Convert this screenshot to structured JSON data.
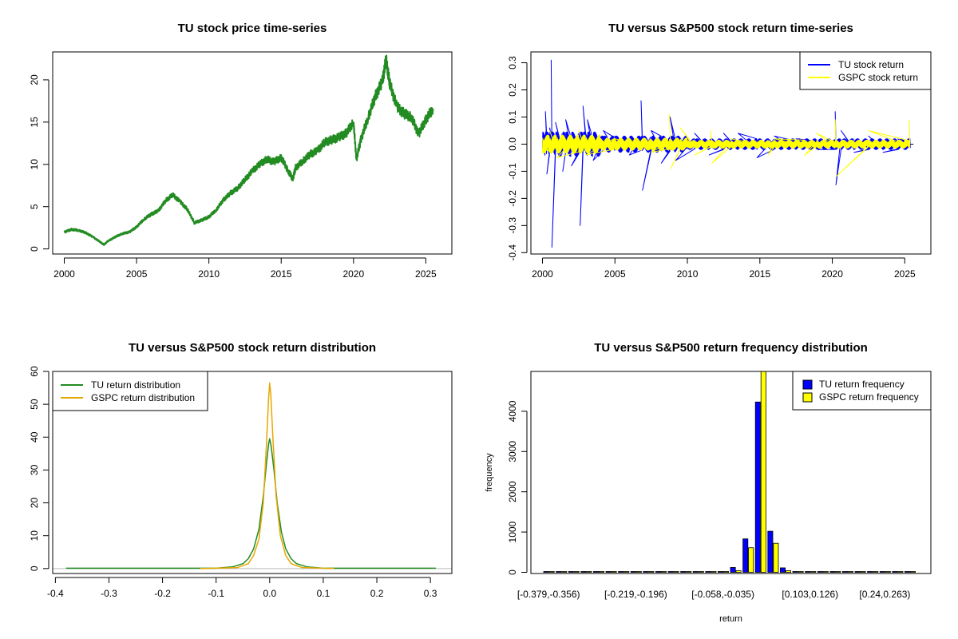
{
  "chart_data": [
    {
      "id": "price",
      "type": "line",
      "title": "TU stock price time-series",
      "xlabel": "",
      "ylabel": "",
      "xlim": [
        1999.2,
        2026.8
      ],
      "ylim": [
        -0.6,
        23.3
      ],
      "x_ticks": [
        2000,
        2005,
        2010,
        2015,
        2020,
        2025
      ],
      "y_ticks": [
        0,
        5,
        10,
        15,
        20
      ],
      "series": [
        {
          "name": "TU stock price",
          "color": "#228B22",
          "points": [
            [
              2000.0,
              2.0
            ],
            [
              2000.5,
              2.3
            ],
            [
              2001.0,
              2.2
            ],
            [
              2001.5,
              1.9
            ],
            [
              2002.0,
              1.4
            ],
            [
              2002.5,
              0.8
            ],
            [
              2002.75,
              0.5
            ],
            [
              2003.0,
              0.9
            ],
            [
              2003.5,
              1.4
            ],
            [
              2004.0,
              1.8
            ],
            [
              2004.5,
              2.0
            ],
            [
              2005.0,
              2.6
            ],
            [
              2005.5,
              3.5
            ],
            [
              2006.0,
              4.1
            ],
            [
              2006.5,
              4.5
            ],
            [
              2007.0,
              5.7
            ],
            [
              2007.5,
              6.4
            ],
            [
              2008.0,
              5.6
            ],
            [
              2008.5,
              4.7
            ],
            [
              2009.0,
              3.1
            ],
            [
              2009.5,
              3.4
            ],
            [
              2010.0,
              3.8
            ],
            [
              2010.5,
              4.6
            ],
            [
              2011.0,
              5.8
            ],
            [
              2011.5,
              6.6
            ],
            [
              2012.0,
              7.2
            ],
            [
              2012.5,
              8.2
            ],
            [
              2013.0,
              9.2
            ],
            [
              2013.5,
              10.0
            ],
            [
              2014.0,
              10.6
            ],
            [
              2014.5,
              10.3
            ],
            [
              2015.0,
              10.8
            ],
            [
              2015.5,
              9.2
            ],
            [
              2015.8,
              8.3
            ],
            [
              2016.0,
              9.6
            ],
            [
              2016.5,
              10.4
            ],
            [
              2017.0,
              11.2
            ],
            [
              2017.5,
              11.6
            ],
            [
              2018.0,
              12.6
            ],
            [
              2018.5,
              12.9
            ],
            [
              2019.0,
              13.2
            ],
            [
              2019.5,
              13.7
            ],
            [
              2020.0,
              15.0
            ],
            [
              2020.2,
              10.6
            ],
            [
              2020.5,
              12.9
            ],
            [
              2021.0,
              15.5
            ],
            [
              2021.5,
              18.0
            ],
            [
              2022.0,
              19.8
            ],
            [
              2022.25,
              22.4
            ],
            [
              2022.5,
              19.6
            ],
            [
              2023.0,
              16.8
            ],
            [
              2023.5,
              16.0
            ],
            [
              2024.0,
              15.6
            ],
            [
              2024.5,
              13.6
            ],
            [
              2025.0,
              15.3
            ],
            [
              2025.5,
              16.6
            ]
          ]
        }
      ]
    },
    {
      "id": "returns",
      "type": "line",
      "title": "TU versus S&P500 stock return time-series",
      "xlabel": "",
      "ylabel": "",
      "xlim": [
        1999.2,
        2026.8
      ],
      "ylim": [
        -0.405,
        0.34
      ],
      "x_ticks": [
        2000,
        2005,
        2010,
        2015,
        2020,
        2025
      ],
      "y_ticks": [
        0.3,
        0.2,
        0.1,
        0.0,
        -0.1,
        -0.2,
        -0.3,
        -0.4
      ],
      "y_tick_labels": [
        "0.3",
        "0.2",
        "0.1",
        "0.0",
        "-0.1",
        "-0.2",
        "-0.3",
        "-0.4"
      ],
      "series": [
        {
          "name": "TU stock return",
          "color": "#0000FF",
          "points": [
            [
              2000.0,
              0.0
            ],
            [
              2000.2,
              0.12
            ],
            [
              2000.3,
              -0.11
            ],
            [
              2000.5,
              0.06
            ],
            [
              2000.6,
              0.31
            ],
            [
              2000.65,
              -0.38
            ],
            [
              2000.9,
              0.08
            ],
            [
              2001.4,
              -0.1
            ],
            [
              2001.6,
              0.09
            ],
            [
              2002.0,
              -0.08
            ],
            [
              2002.6,
              -0.3
            ],
            [
              2002.8,
              0.14
            ],
            [
              2003.1,
              0.09
            ],
            [
              2003.5,
              -0.06
            ],
            [
              2004.2,
              0.05
            ],
            [
              2005.0,
              0.03
            ],
            [
              2006.0,
              -0.04
            ],
            [
              2006.8,
              0.16
            ],
            [
              2006.9,
              -0.17
            ],
            [
              2007.5,
              0.05
            ],
            [
              2008.2,
              -0.07
            ],
            [
              2008.8,
              0.1
            ],
            [
              2009.2,
              -0.06
            ],
            [
              2010.5,
              0.04
            ],
            [
              2011.5,
              -0.04
            ],
            [
              2012.5,
              0.04
            ],
            [
              2013.5,
              0.04
            ],
            [
              2014.8,
              -0.05
            ],
            [
              2016.0,
              0.03
            ],
            [
              2017.5,
              0.02
            ],
            [
              2019.0,
              -0.02
            ],
            [
              2020.2,
              0.12
            ],
            [
              2020.25,
              -0.15
            ],
            [
              2020.6,
              0.05
            ],
            [
              2021.5,
              -0.03
            ],
            [
              2022.5,
              0.03
            ],
            [
              2023.5,
              -0.03
            ],
            [
              2024.5,
              0.02
            ],
            [
              2025.4,
              0.05
            ]
          ]
        },
        {
          "name": "GSPC stock return",
          "color": "#FFFF00",
          "points": [
            [
              2000.0,
              0.0
            ],
            [
              2000.5,
              0.05
            ],
            [
              2001.0,
              -0.05
            ],
            [
              2002.5,
              0.05
            ],
            [
              2003.0,
              -0.04
            ],
            [
              2005.0,
              0.02
            ],
            [
              2007.5,
              -0.03
            ],
            [
              2008.75,
              0.11
            ],
            [
              2008.85,
              -0.09
            ],
            [
              2009.5,
              0.06
            ],
            [
              2010.5,
              -0.04
            ],
            [
              2011.6,
              0.05
            ],
            [
              2011.7,
              -0.07
            ],
            [
              2013.0,
              0.02
            ],
            [
              2015.6,
              -0.04
            ],
            [
              2016.0,
              0.02
            ],
            [
              2018.1,
              -0.04
            ],
            [
              2018.9,
              0.04
            ],
            [
              2020.2,
              0.09
            ],
            [
              2020.25,
              -0.12
            ],
            [
              2022.5,
              0.05
            ],
            [
              2025.3,
              0.09
            ],
            [
              2025.35,
              -0.06
            ]
          ]
        }
      ]
    },
    {
      "id": "density",
      "type": "line",
      "title": "TU versus S&P500 stock return distribution",
      "xlabel": "",
      "ylabel": "",
      "xlim": [
        -0.405,
        0.34
      ],
      "ylim": [
        -1.5,
        60
      ],
      "x_ticks": [
        -0.4,
        -0.3,
        -0.2,
        -0.1,
        0.0,
        0.1,
        0.2,
        0.3
      ],
      "x_tick_labels": [
        "-0.4",
        "-0.3",
        "-0.2",
        "-0.1",
        "0.0",
        "0.1",
        "0.2",
        "0.3"
      ],
      "y_ticks": [
        0,
        10,
        20,
        30,
        40,
        50,
        60
      ],
      "series": [
        {
          "name": "TU return distribution",
          "color": "#228B22",
          "points": [
            [
              -0.38,
              0.1
            ],
            [
              -0.1,
              0.1
            ],
            [
              -0.07,
              0.5
            ],
            [
              -0.05,
              1.5
            ],
            [
              -0.04,
              3.0
            ],
            [
              -0.03,
              6.0
            ],
            [
              -0.02,
              12.0
            ],
            [
              -0.012,
              22.0
            ],
            [
              -0.006,
              32.0
            ],
            [
              -0.002,
              38.0
            ],
            [
              0.0,
              39.5
            ],
            [
              0.003,
              37.0
            ],
            [
              0.008,
              30.0
            ],
            [
              0.014,
              20.0
            ],
            [
              0.022,
              11.0
            ],
            [
              0.03,
              6.0
            ],
            [
              0.04,
              3.0
            ],
            [
              0.05,
              1.5
            ],
            [
              0.07,
              0.5
            ],
            [
              0.1,
              0.1
            ],
            [
              0.31,
              0.1
            ]
          ]
        },
        {
          "name": "GSPC return distribution",
          "color": "#E6A800",
          "points": [
            [
              -0.13,
              0.0
            ],
            [
              -0.06,
              0.3
            ],
            [
              -0.04,
              1.5
            ],
            [
              -0.03,
              4.0
            ],
            [
              -0.02,
              9.0
            ],
            [
              -0.012,
              20.0
            ],
            [
              -0.006,
              38.0
            ],
            [
              -0.002,
              52.0
            ],
            [
              0.0,
              56.5
            ],
            [
              0.002,
              53.0
            ],
            [
              0.006,
              40.0
            ],
            [
              0.012,
              22.0
            ],
            [
              0.02,
              10.0
            ],
            [
              0.03,
              4.0
            ],
            [
              0.04,
              1.5
            ],
            [
              0.06,
              0.3
            ],
            [
              0.12,
              0.0
            ]
          ]
        }
      ]
    },
    {
      "id": "histogram",
      "type": "bar",
      "title": "TU versus S&P500 return frequency distribution",
      "xlabel": "return",
      "ylabel": "frequency",
      "ylim": [
        -30,
        4990
      ],
      "y_ticks": [
        0,
        1000,
        2000,
        3000,
        4000
      ],
      "x_tick_labels": [
        "[-0.379,-0.356)",
        "[-0.219,-0.196)",
        "[-0.058,-0.035)",
        "[0.103,0.126)",
        "[0.24,0.263)"
      ],
      "x_tick_indices": [
        0,
        7,
        14,
        21,
        27
      ],
      "categories_count": 30,
      "series": [
        {
          "name": "TU return frequency",
          "color": "#0000FF",
          "values": [
            1,
            0,
            0,
            0,
            0,
            0,
            0,
            0,
            0,
            0,
            0,
            0,
            1,
            6,
            18,
            120,
            830,
            4230,
            1020,
            110,
            20,
            8,
            3,
            1,
            1,
            0,
            0,
            0,
            0,
            1
          ]
        },
        {
          "name": "GSPC return frequency",
          "color": "#FFFF00",
          "values": [
            0,
            0,
            0,
            0,
            0,
            0,
            0,
            0,
            0,
            0,
            0,
            0,
            0,
            2,
            8,
            40,
            610,
            5100,
            720,
            40,
            6,
            2,
            0,
            0,
            0,
            0,
            0,
            0,
            0,
            0
          ]
        }
      ]
    }
  ]
}
